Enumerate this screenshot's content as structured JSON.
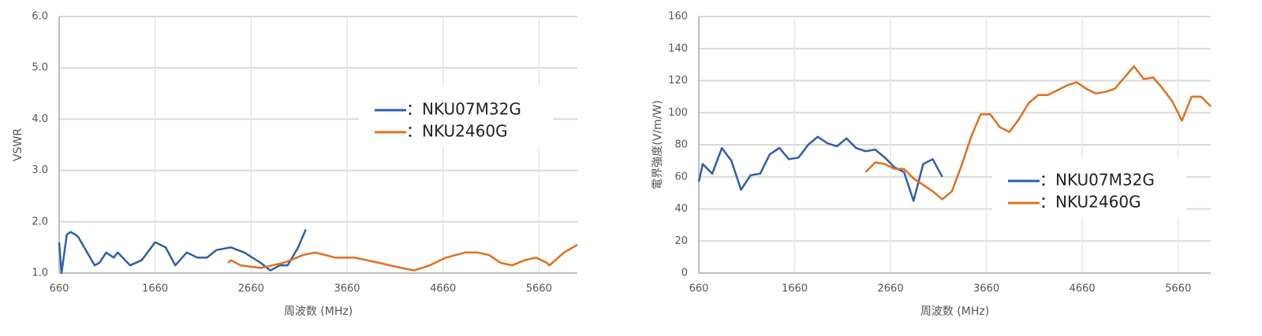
{
  "chart_data": [
    {
      "type": "line",
      "ylabel": "VSWR",
      "xlabel": "周波数 (MHz)",
      "xlim": [
        660,
        6060
      ],
      "ylim": [
        1,
        6
      ],
      "xticks": [
        660,
        1660,
        2660,
        3660,
        4660,
        5660
      ],
      "yticks": [
        {
          "value": 1,
          "label": "1.0"
        },
        {
          "value": 2,
          "label": "2.0"
        },
        {
          "value": 3,
          "label": "3.0"
        },
        {
          "value": 4,
          "label": "4.0"
        },
        {
          "value": 5,
          "label": "5.0"
        },
        {
          "value": 6,
          "label": "6.0"
        }
      ],
      "grid": true,
      "legend": "upper right",
      "series": [
        {
          "name": "：NKU07M32G",
          "color": "#2f5fa8",
          "x": [
            660,
            685,
            740,
            780,
            830,
            860,
            1030,
            1080,
            1150,
            1230,
            1270,
            1400,
            1520,
            1660,
            1770,
            1870,
            1990,
            2100,
            2200,
            2300,
            2450,
            2590,
            2760,
            2860,
            2960,
            3040,
            3150,
            3230
          ],
          "values": [
            1.6,
            1.0,
            1.75,
            1.8,
            1.75,
            1.7,
            1.15,
            1.2,
            1.4,
            1.3,
            1.4,
            1.15,
            1.25,
            1.6,
            1.5,
            1.15,
            1.4,
            1.3,
            1.3,
            1.45,
            1.5,
            1.4,
            1.2,
            1.05,
            1.15,
            1.15,
            1.5,
            1.85
          ]
        },
        {
          "name": "：NKU2460G",
          "color": "#e0701f",
          "x": [
            2420,
            2450,
            2550,
            2760,
            2880,
            3000,
            3200,
            3330,
            3540,
            3740,
            3990,
            4230,
            4360,
            4520,
            4690,
            4890,
            5020,
            5140,
            5260,
            5380,
            5510,
            5630,
            5740,
            5770,
            5920,
            6060
          ],
          "values": [
            1.2,
            1.25,
            1.15,
            1.1,
            1.15,
            1.2,
            1.35,
            1.4,
            1.3,
            1.3,
            1.2,
            1.1,
            1.05,
            1.15,
            1.3,
            1.4,
            1.4,
            1.35,
            1.2,
            1.15,
            1.25,
            1.3,
            1.2,
            1.15,
            1.4,
            1.55
          ]
        }
      ]
    },
    {
      "type": "line",
      "ylabel": "電界強度(V/m/W)",
      "xlabel": "周波数 (MHz)",
      "xlim": [
        660,
        6000
      ],
      "ylim": [
        0,
        160
      ],
      "xticks": [
        660,
        1660,
        2660,
        3660,
        4660,
        5660
      ],
      "yticks": [
        0,
        20,
        40,
        60,
        80,
        100,
        120,
        140,
        160
      ],
      "grid": true,
      "legend": "lower right",
      "series": [
        {
          "name": "：NKU07M32G",
          "color": "#2f5fa8",
          "x": [
            660,
            700,
            800,
            900,
            1000,
            1100,
            1200,
            1300,
            1400,
            1500,
            1600,
            1700,
            1800,
            1900,
            2000,
            2100,
            2200,
            2300,
            2400,
            2500,
            2600,
            2700,
            2800,
            2900,
            3000,
            3100,
            3200
          ],
          "values": [
            57,
            68,
            62,
            78,
            70,
            52,
            61,
            62,
            74,
            78,
            71,
            72,
            80,
            85,
            81,
            79,
            84,
            78,
            76,
            77,
            72,
            66,
            63,
            45,
            68,
            71,
            60
          ]
        },
        {
          "name": "：NKU2460G",
          "color": "#e0701f",
          "x": [
            2400,
            2500,
            2600,
            2700,
            2800,
            2900,
            3000,
            3100,
            3200,
            3300,
            3400,
            3500,
            3600,
            3700,
            3800,
            3900,
            4000,
            4100,
            4200,
            4300,
            4400,
            4500,
            4600,
            4700,
            4800,
            4900,
            5000,
            5100,
            5200,
            5300,
            5400,
            5500,
            5600,
            5700,
            5800,
            5900,
            6000
          ],
          "values": [
            63,
            69,
            68,
            65,
            65,
            59,
            55,
            51,
            46,
            51,
            67,
            85,
            99,
            99,
            91,
            88,
            96,
            106,
            111,
            111,
            114,
            117,
            119,
            115,
            112,
            113,
            115,
            122,
            129,
            121,
            122,
            115,
            107,
            95,
            110,
            110,
            104
          ]
        }
      ]
    }
  ]
}
